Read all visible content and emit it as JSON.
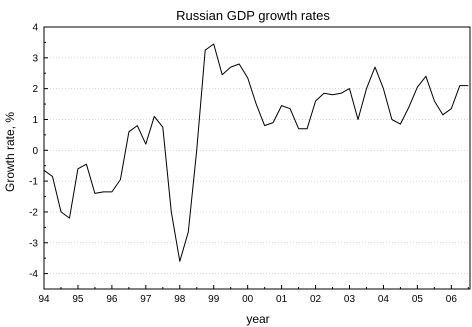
{
  "chart_data": {
    "type": "line",
    "title": "Russian GDP growth rates",
    "xlabel": "year",
    "ylabel": "Growth rate, %",
    "xlim": [
      1994.0,
      2006.55
    ],
    "ylim": [
      -4.5,
      4
    ],
    "grid": true,
    "x_ticks": [
      {
        "value": 1994,
        "label": "94"
      },
      {
        "value": 1995,
        "label": "95"
      },
      {
        "value": 1996,
        "label": "96"
      },
      {
        "value": 1997,
        "label": "97"
      },
      {
        "value": 1998,
        "label": "98"
      },
      {
        "value": 1999,
        "label": "99"
      },
      {
        "value": 2000,
        "label": "00"
      },
      {
        "value": 2001,
        "label": "01"
      },
      {
        "value": 2002,
        "label": "02"
      },
      {
        "value": 2003,
        "label": "03"
      },
      {
        "value": 2004,
        "label": "04"
      },
      {
        "value": 2005,
        "label": "05"
      },
      {
        "value": 2006,
        "label": "06"
      }
    ],
    "y_ticks": [
      4,
      3,
      2,
      1,
      0,
      -1,
      -2,
      -3,
      -4
    ],
    "series": [
      {
        "x": [
          1994.0,
          1994.25,
          1994.5,
          1994.75,
          1995.0,
          1995.25,
          1995.5,
          1995.75,
          1996.0,
          1996.25,
          1996.5,
          1996.75,
          1997.0,
          1997.25,
          1997.5,
          1997.75,
          1998.0,
          1998.25,
          1998.5,
          1998.75,
          1999.0,
          1999.25,
          1999.5,
          1999.75,
          2000.0,
          2000.25,
          2000.5,
          2000.75,
          2001.0,
          2001.25,
          2001.5,
          2001.75,
          2002.0,
          2002.25,
          2002.5,
          2002.75,
          2003.0,
          2003.25,
          2003.5,
          2003.75,
          2004.0,
          2004.25,
          2004.5,
          2004.75,
          2005.0,
          2005.25,
          2005.5,
          2005.75,
          2006.0,
          2006.25,
          2006.5
        ],
        "y": [
          -0.65,
          -0.85,
          -2.0,
          -2.2,
          -0.6,
          -0.45,
          -1.4,
          -1.35,
          -1.35,
          -0.95,
          0.6,
          0.8,
          0.2,
          1.1,
          0.75,
          -2.0,
          -3.6,
          -2.65,
          0.0,
          3.25,
          3.45,
          2.45,
          2.7,
          2.8,
          2.35,
          1.5,
          0.8,
          0.9,
          1.45,
          1.35,
          0.7,
          0.7,
          1.6,
          1.85,
          1.8,
          1.85,
          2.0,
          1.0,
          2.0,
          2.7,
          2.0,
          1.0,
          0.85,
          1.4,
          2.05,
          2.4,
          1.6,
          1.15,
          1.35,
          2.1,
          2.1
        ]
      }
    ]
  }
}
